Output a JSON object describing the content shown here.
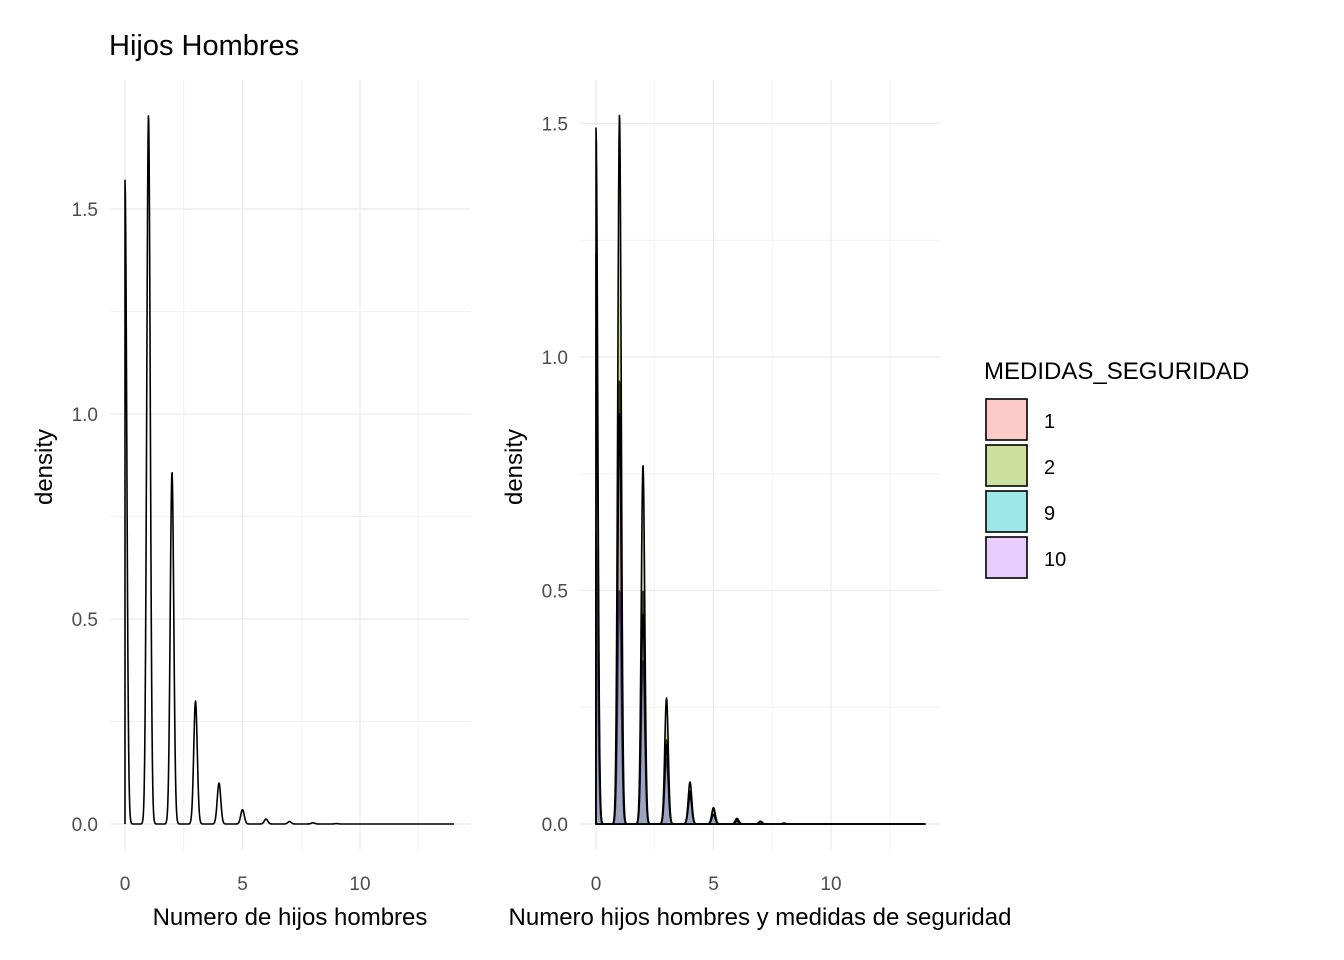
{
  "title": "Hijos Hombres",
  "legend": {
    "title": "MEDIDAS_SEGURIDAD",
    "items": [
      {
        "label": "1",
        "color": "#F8766D"
      },
      {
        "label": "2",
        "color": "#7CAE00"
      },
      {
        "label": "9",
        "color": "#00BFC4"
      },
      {
        "label": "10",
        "color": "#C77CFF"
      }
    ]
  },
  "chart_data": [
    {
      "type": "area",
      "title": "Hijos Hombres",
      "xlabel": "Numero de hijos hombres",
      "ylabel": "density",
      "xlim": [
        0,
        14
      ],
      "ylim": [
        0,
        1.75
      ],
      "x_ticks": [
        0,
        5,
        10
      ],
      "y_ticks": [
        0.0,
        0.5,
        1.0,
        1.5
      ],
      "grid": true,
      "series": [
        {
          "fill": "none",
          "stroke": "#000000",
          "peaks": [
            [
              0,
              1.57
            ],
            [
              1,
              1.73
            ],
            [
              2,
              0.86
            ],
            [
              3,
              0.3
            ],
            [
              4,
              0.1
            ],
            [
              5,
              0.035
            ],
            [
              6,
              0.012
            ],
            [
              7,
              0.006
            ],
            [
              8,
              0.003
            ],
            [
              9,
              0.001
            ]
          ]
        }
      ]
    },
    {
      "type": "area",
      "xlabel": "Numero hijos hombres y medidas de seguridad",
      "ylabel": "density",
      "xlim": [
        0,
        14
      ],
      "ylim": [
        0,
        1.55
      ],
      "x_ticks": [
        0,
        5,
        10
      ],
      "y_ticks": [
        0.0,
        0.5,
        1.0,
        1.5
      ],
      "grid": true,
      "legend_position": "right",
      "series": [
        {
          "name": "1",
          "color": "#F8766D",
          "peaks": [
            [
              0,
              0.62
            ],
            [
              1,
              0.95
            ],
            [
              2,
              0.5
            ],
            [
              3,
              0.18
            ],
            [
              4,
              0.07
            ],
            [
              5,
              0.03
            ],
            [
              6,
              0.01
            ],
            [
              7,
              0.004
            ]
          ]
        },
        {
          "name": "2",
          "color": "#7CAE00",
          "peaks": [
            [
              0,
              1.49
            ],
            [
              1,
              1.52
            ],
            [
              2,
              0.77
            ],
            [
              3,
              0.27
            ],
            [
              4,
              0.09
            ],
            [
              5,
              0.035
            ],
            [
              6,
              0.012
            ],
            [
              7,
              0.006
            ],
            [
              8,
              0.002
            ]
          ]
        },
        {
          "name": "9",
          "color": "#00BFC4",
          "peaks": [
            [
              0,
              0.58
            ],
            [
              1,
              0.5
            ],
            [
              2,
              0.35
            ],
            [
              3,
              0.14
            ],
            [
              4,
              0.07
            ],
            [
              5,
              0.02
            ],
            [
              6,
              0.008
            ]
          ]
        },
        {
          "name": "10",
          "color": "#C77CFF",
          "peaks": [
            [
              0,
              1.22
            ],
            [
              1,
              0.88
            ],
            [
              2,
              0.45
            ],
            [
              3,
              0.17
            ],
            [
              4,
              0.06
            ],
            [
              5,
              0.02
            ],
            [
              6,
              0.006
            ]
          ]
        }
      ]
    }
  ]
}
